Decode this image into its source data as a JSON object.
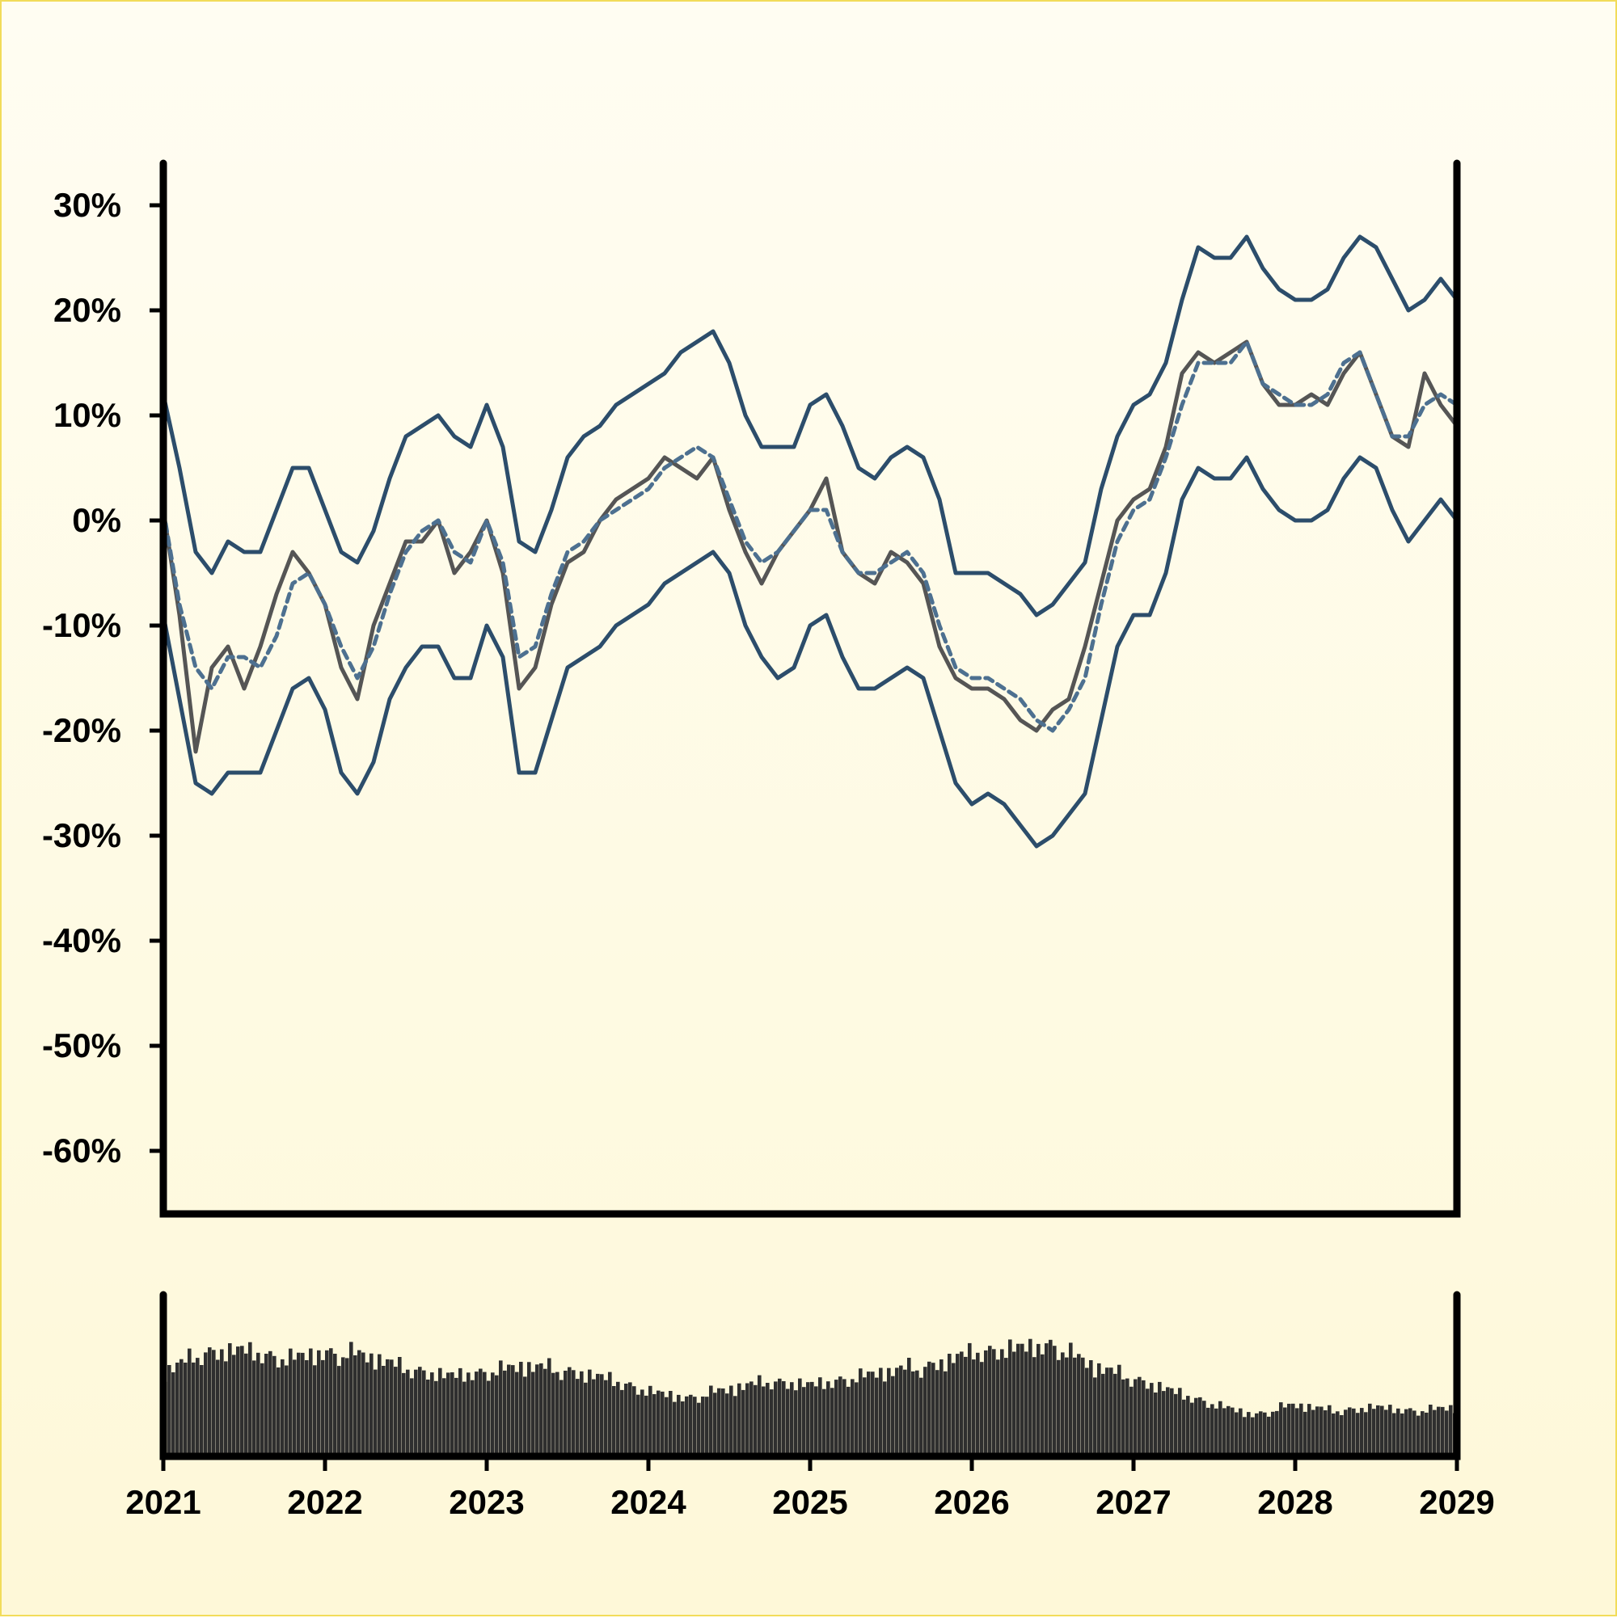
{
  "chart_data": {
    "type": "line",
    "title": "",
    "xlabel": "",
    "ylabel": "",
    "x_ticks": [
      "2021",
      "2022",
      "2023",
      "2024",
      "2025",
      "2026",
      "2027",
      "2028",
      "2029"
    ],
    "y_ticks": [
      "30%",
      "20%",
      "10%",
      "0%",
      "-10%",
      "-20%",
      "-30%",
      "-40%",
      "-50%",
      "-60%"
    ],
    "xlim": [
      2021.0,
      2029.0
    ],
    "ylim": [
      -66,
      34
    ],
    "grid": false,
    "legend": "none",
    "colors": {
      "price": "#555555",
      "bands": "#2c4d6b",
      "moving_average": "#4d7090",
      "volume": "#2f2f2f",
      "frame": "#000000"
    },
    "series": [
      {
        "role": "price",
        "x": [
          2021.0,
          2021.1,
          2021.2,
          2021.3,
          2021.4,
          2021.5,
          2021.6,
          2021.7,
          2021.8,
          2021.9,
          2022.0,
          2022.1,
          2022.2,
          2022.3,
          2022.4,
          2022.5,
          2022.6,
          2022.7,
          2022.8,
          2022.9,
          2023.0,
          2023.1,
          2023.2,
          2023.3,
          2023.4,
          2023.5,
          2023.6,
          2023.7,
          2023.8,
          2023.9,
          2024.0,
          2024.1,
          2024.2,
          2024.3,
          2024.4,
          2024.5,
          2024.6,
          2024.7,
          2024.8,
          2024.9,
          2025.0,
          2025.1,
          2025.2,
          2025.3,
          2025.4,
          2025.5,
          2025.6,
          2025.7,
          2025.8,
          2025.9,
          2026.0,
          2026.1,
          2026.2,
          2026.3,
          2026.4,
          2026.5,
          2026.6,
          2026.7,
          2026.8,
          2026.9,
          2027.0,
          2027.1,
          2027.2,
          2027.3,
          2027.4,
          2027.5,
          2027.6,
          2027.7,
          2027.8,
          2027.9,
          2028.0,
          2028.1,
          2028.2,
          2028.3,
          2028.4,
          2028.5,
          2028.6,
          2028.7,
          2028.8,
          2028.9,
          2029.0
        ],
        "values": [
          1,
          -9,
          -22,
          -14,
          -12,
          -16,
          -12,
          -7,
          -3,
          -5,
          -8,
          -14,
          -17,
          -10,
          -6,
          -2,
          -2,
          0,
          -5,
          -3,
          0,
          -5,
          -16,
          -14,
          -8,
          -4,
          -3,
          0,
          2,
          3,
          4,
          6,
          5,
          4,
          6,
          1,
          -3,
          -6,
          -3,
          -1,
          1,
          4,
          -3,
          -5,
          -6,
          -3,
          -4,
          -6,
          -12,
          -15,
          -16,
          -16,
          -17,
          -19,
          -20,
          -18,
          -17,
          -12,
          -6,
          0,
          2,
          3,
          7,
          14,
          16,
          15,
          16,
          17,
          13,
          11,
          11,
          12,
          11,
          14,
          16,
          12,
          8,
          7,
          14,
          11,
          9
        ]
      },
      {
        "role": "moving_average",
        "x": [
          2021.0,
          2021.1,
          2021.2,
          2021.3,
          2021.4,
          2021.5,
          2021.6,
          2021.7,
          2021.8,
          2021.9,
          2022.0,
          2022.1,
          2022.2,
          2022.3,
          2022.4,
          2022.5,
          2022.6,
          2022.7,
          2022.8,
          2022.9,
          2023.0,
          2023.1,
          2023.2,
          2023.3,
          2023.4,
          2023.5,
          2023.6,
          2023.7,
          2023.8,
          2023.9,
          2024.0,
          2024.1,
          2024.2,
          2024.3,
          2024.4,
          2024.5,
          2024.6,
          2024.7,
          2024.8,
          2024.9,
          2025.0,
          2025.1,
          2025.2,
          2025.3,
          2025.4,
          2025.5,
          2025.6,
          2025.7,
          2025.8,
          2025.9,
          2026.0,
          2026.1,
          2026.2,
          2026.3,
          2026.4,
          2026.5,
          2026.6,
          2026.7,
          2026.8,
          2026.9,
          2027.0,
          2027.1,
          2027.2,
          2027.3,
          2027.4,
          2027.5,
          2027.6,
          2027.7,
          2027.8,
          2027.9,
          2028.0,
          2028.1,
          2028.2,
          2028.3,
          2028.4,
          2028.5,
          2028.6,
          2028.7,
          2028.8,
          2028.9,
          2029.0
        ],
        "values": [
          1,
          -8,
          -14,
          -16,
          -13,
          -13,
          -14,
          -11,
          -6,
          -5,
          -8,
          -12,
          -15,
          -12,
          -7,
          -3,
          -1,
          0,
          -3,
          -4,
          0,
          -4,
          -13,
          -12,
          -7,
          -3,
          -2,
          0,
          1,
          2,
          3,
          5,
          6,
          7,
          6,
          2,
          -2,
          -4,
          -3,
          -1,
          1,
          1,
          -3,
          -5,
          -5,
          -4,
          -3,
          -5,
          -10,
          -14,
          -15,
          -15,
          -16,
          -17,
          -19,
          -20,
          -18,
          -15,
          -8,
          -2,
          1,
          2,
          6,
          11,
          15,
          15,
          15,
          17,
          13,
          12,
          11,
          11,
          12,
          15,
          16,
          12,
          8,
          8,
          11,
          12,
          11
        ]
      },
      {
        "role": "upper_band",
        "x": [
          2021.0,
          2021.1,
          2021.2,
          2021.3,
          2021.4,
          2021.5,
          2021.6,
          2021.7,
          2021.8,
          2021.9,
          2022.0,
          2022.1,
          2022.2,
          2022.3,
          2022.4,
          2022.5,
          2022.6,
          2022.7,
          2022.8,
          2022.9,
          2023.0,
          2023.1,
          2023.2,
          2023.3,
          2023.4,
          2023.5,
          2023.6,
          2023.7,
          2023.8,
          2023.9,
          2024.0,
          2024.1,
          2024.2,
          2024.3,
          2024.4,
          2024.5,
          2024.6,
          2024.7,
          2024.8,
          2024.9,
          2025.0,
          2025.1,
          2025.2,
          2025.3,
          2025.4,
          2025.5,
          2025.6,
          2025.7,
          2025.8,
          2025.9,
          2026.0,
          2026.1,
          2026.2,
          2026.3,
          2026.4,
          2026.5,
          2026.6,
          2026.7,
          2026.8,
          2026.9,
          2027.0,
          2027.1,
          2027.2,
          2027.3,
          2027.4,
          2027.5,
          2027.6,
          2027.7,
          2027.8,
          2027.9,
          2028.0,
          2028.1,
          2028.2,
          2028.3,
          2028.4,
          2028.5,
          2028.6,
          2028.7,
          2028.8,
          2028.9,
          2029.0
        ],
        "values": [
          12,
          5,
          -3,
          -5,
          -2,
          -3,
          -3,
          1,
          5,
          5,
          1,
          -3,
          -4,
          -1,
          4,
          8,
          9,
          10,
          8,
          7,
          11,
          7,
          -2,
          -3,
          1,
          6,
          8,
          9,
          11,
          12,
          13,
          14,
          16,
          17,
          18,
          15,
          10,
          7,
          7,
          7,
          11,
          12,
          9,
          5,
          4,
          6,
          7,
          6,
          2,
          -5,
          -5,
          -5,
          -6,
          -7,
          -9,
          -8,
          -6,
          -4,
          3,
          8,
          11,
          12,
          15,
          21,
          26,
          25,
          25,
          27,
          24,
          22,
          21,
          21,
          22,
          25,
          27,
          26,
          23,
          20,
          21,
          23,
          21
        ]
      },
      {
        "role": "lower_band",
        "x": [
          2021.0,
          2021.1,
          2021.2,
          2021.3,
          2021.4,
          2021.5,
          2021.6,
          2021.7,
          2021.8,
          2021.9,
          2022.0,
          2022.1,
          2022.2,
          2022.3,
          2022.4,
          2022.5,
          2022.6,
          2022.7,
          2022.8,
          2022.9,
          2023.0,
          2023.1,
          2023.2,
          2023.3,
          2023.4,
          2023.5,
          2023.6,
          2023.7,
          2023.8,
          2023.9,
          2024.0,
          2024.1,
          2024.2,
          2024.3,
          2024.4,
          2024.5,
          2024.6,
          2024.7,
          2024.8,
          2024.9,
          2025.0,
          2025.1,
          2025.2,
          2025.3,
          2025.4,
          2025.5,
          2025.6,
          2025.7,
          2025.8,
          2025.9,
          2026.0,
          2026.1,
          2026.2,
          2026.3,
          2026.4,
          2026.5,
          2026.6,
          2026.7,
          2026.8,
          2026.9,
          2027.0,
          2027.1,
          2027.2,
          2027.3,
          2027.4,
          2027.5,
          2027.6,
          2027.7,
          2027.8,
          2027.9,
          2028.0,
          2028.1,
          2028.2,
          2028.3,
          2028.4,
          2028.5,
          2028.6,
          2028.7,
          2028.8,
          2028.9,
          2029.0
        ],
        "values": [
          -9,
          -17,
          -25,
          -26,
          -24,
          -24,
          -24,
          -20,
          -16,
          -15,
          -18,
          -24,
          -26,
          -23,
          -17,
          -14,
          -12,
          -12,
          -15,
          -15,
          -10,
          -13,
          -24,
          -24,
          -19,
          -14,
          -13,
          -12,
          -10,
          -9,
          -8,
          -6,
          -5,
          -4,
          -3,
          -5,
          -10,
          -13,
          -15,
          -14,
          -10,
          -9,
          -13,
          -16,
          -16,
          -15,
          -14,
          -15,
          -20,
          -25,
          -27,
          -26,
          -27,
          -29,
          -31,
          -30,
          -28,
          -26,
          -19,
          -12,
          -9,
          -9,
          -5,
          2,
          5,
          4,
          4,
          6,
          3,
          1,
          0,
          0,
          1,
          4,
          6,
          5,
          1,
          -2,
          0,
          2,
          0
        ]
      }
    ],
    "volume": {
      "x": [
        2021.0,
        2021.25,
        2021.5,
        2021.75,
        2022.0,
        2022.25,
        2022.5,
        2022.75,
        2023.0,
        2023.25,
        2023.5,
        2023.75,
        2024.0,
        2024.25,
        2024.5,
        2024.75,
        2025.0,
        2025.25,
        2025.5,
        2025.75,
        2026.0,
        2026.25,
        2026.5,
        2026.75,
        2027.0,
        2027.25,
        2027.5,
        2027.75,
        2028.0,
        2028.25,
        2028.5,
        2028.75,
        2029.0
      ],
      "values": [
        0.65,
        0.8,
        0.82,
        0.75,
        0.8,
        0.78,
        0.68,
        0.62,
        0.65,
        0.7,
        0.66,
        0.6,
        0.5,
        0.45,
        0.52,
        0.58,
        0.55,
        0.6,
        0.66,
        0.7,
        0.8,
        0.83,
        0.86,
        0.7,
        0.6,
        0.5,
        0.4,
        0.32,
        0.4,
        0.35,
        0.38,
        0.35,
        0.38
      ]
    }
  }
}
